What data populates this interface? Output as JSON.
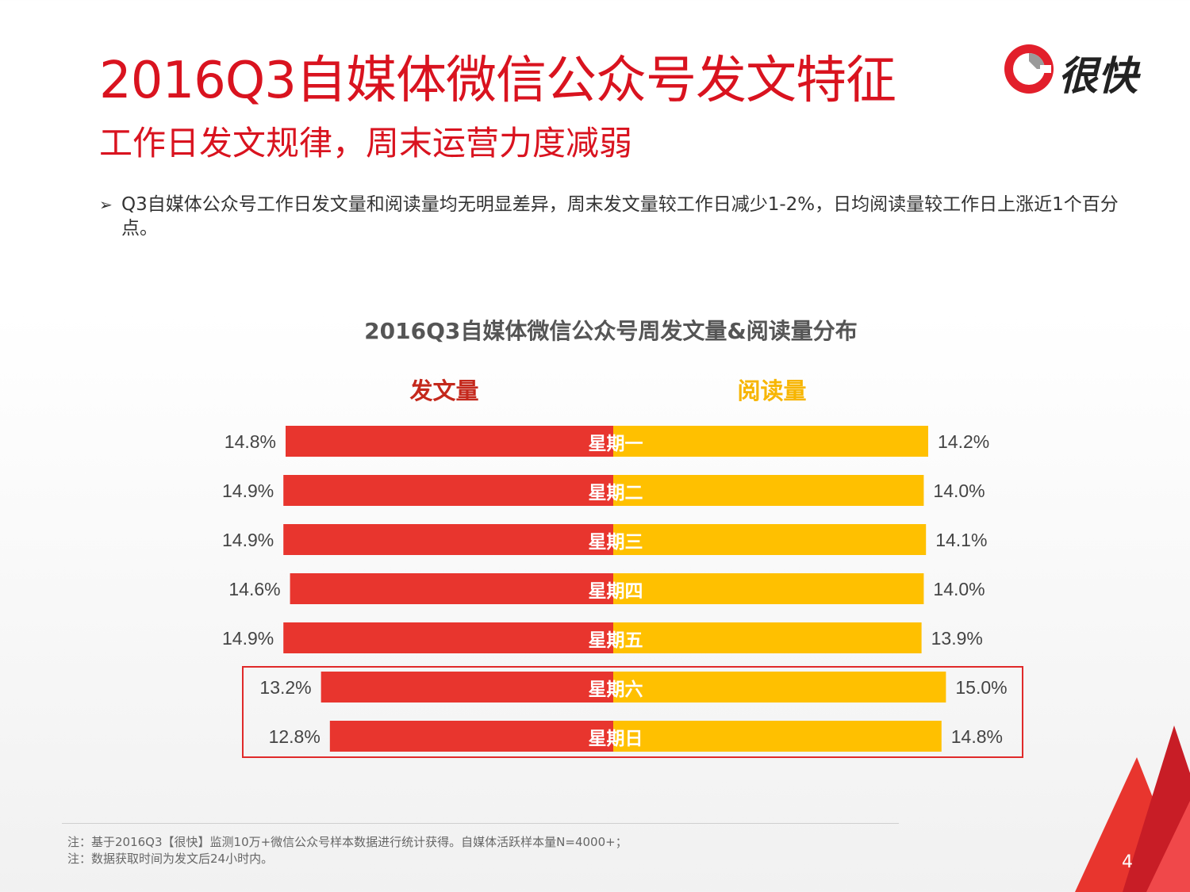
{
  "title": "2016Q3自媒体微信公众号发文特征",
  "subtitle": "工作日发文规律，周末运营力度减弱",
  "logo": {
    "text": "很快",
    "icon": "logo-ring-icon"
  },
  "bullet": {
    "marker": "➢",
    "text": "Q3自媒体公众号工作日发文量和阅读量均无明显差异，周末发文量较工作日减少1-2%，日均阅读量较工作日上涨近1个百分点。"
  },
  "chart_data": {
    "type": "bar",
    "title": "2016Q3自媒体微信公众号周发文量&阅读量分布",
    "categories": [
      "星期一",
      "星期二",
      "星期三",
      "星期四",
      "星期五",
      "星期六",
      "星期日"
    ],
    "series": [
      {
        "name": "发文量",
        "values": [
          14.8,
          14.9,
          14.9,
          14.6,
          14.9,
          13.2,
          12.8
        ],
        "labels": [
          "14.8%",
          "14.9%",
          "14.9%",
          "14.6%",
          "14.9%",
          "13.2%",
          "12.8%"
        ]
      },
      {
        "name": "阅读量",
        "values": [
          14.2,
          14.0,
          14.1,
          14.0,
          13.9,
          15.0,
          14.8
        ],
        "labels": [
          "14.2%",
          "14.0%",
          "14.1%",
          "14.0%",
          "13.9%",
          "15.0%",
          "14.8%"
        ]
      }
    ],
    "highlighted_categories": [
      "星期六",
      "星期日"
    ],
    "colors": {
      "发文量": "#e8352e",
      "阅读量": "#ffc000"
    }
  },
  "notes": [
    "注：基于2016Q3【很快】监测10万+微信公众号样本数据进行统计获得。自媒体活跃样本量N=4000+；",
    "注：数据获取时间为发文后24小时内。"
  ],
  "page_number": "4"
}
